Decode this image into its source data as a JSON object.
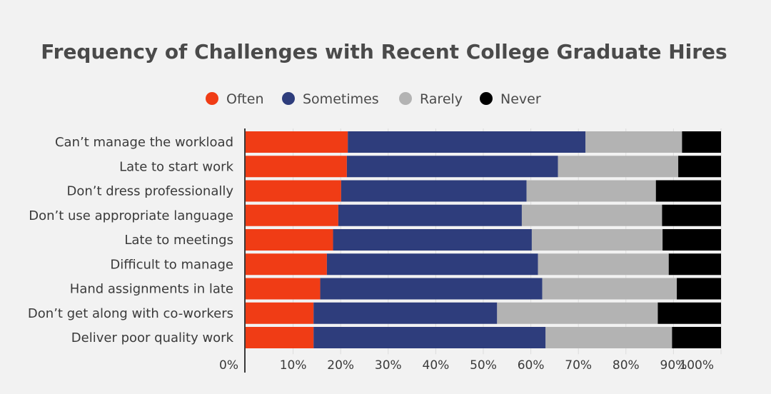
{
  "chart_data": {
    "type": "bar",
    "orientation": "horizontal",
    "stacked": true,
    "title": "Frequency of Challenges with Recent College Graduate Hires",
    "xlabel": "",
    "ylabel": "",
    "xlim": [
      0,
      100
    ],
    "ticks": [
      "0%",
      "10%",
      "20%",
      "30%",
      "40%",
      "50%",
      "60%",
      "70%",
      "80%",
      "90%",
      "100%"
    ],
    "grid": true,
    "legend_position": "top-center",
    "categories": [
      "Can’t manage the workload",
      "Late to start work",
      "Don’t dress professionally",
      "Don’t use appropriate language",
      "Late to meetings",
      "Difficult to manage",
      "Hand assignments in late",
      "Don’t get along with co-workers",
      "Deliver poor quality work"
    ],
    "series": [
      {
        "name": "Often",
        "color": "#f03c15",
        "values": [
          21.5,
          21.3,
          20.1,
          19.5,
          18.4,
          17.1,
          15.7,
          14.3,
          14.3
        ]
      },
      {
        "name": "Sometimes",
        "color": "#2e3d7c",
        "values": [
          50.0,
          44.4,
          39.0,
          38.6,
          41.8,
          44.4,
          46.7,
          38.6,
          48.8
        ]
      },
      {
        "name": "Rarely",
        "color": "#b3b3b3",
        "values": [
          20.3,
          25.3,
          27.2,
          29.5,
          27.5,
          27.5,
          28.3,
          33.8,
          26.6
        ]
      },
      {
        "name": "Never",
        "color": "#000000",
        "values": [
          8.2,
          9.0,
          13.7,
          12.4,
          12.3,
          11.0,
          9.3,
          13.3,
          10.3
        ]
      }
    ]
  }
}
